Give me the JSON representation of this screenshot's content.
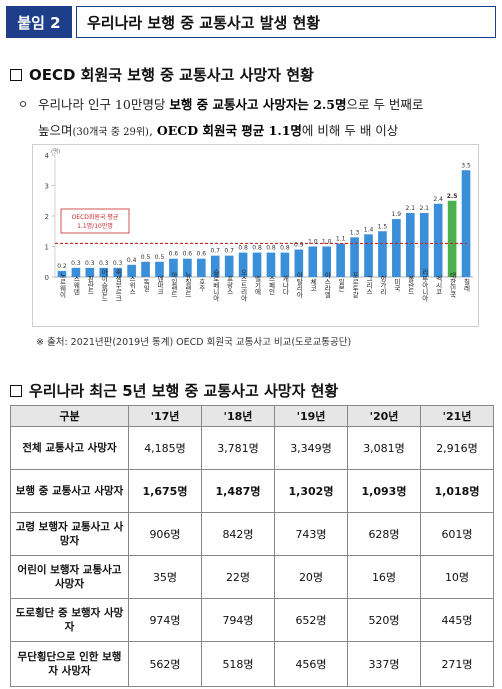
{
  "header": {
    "tag": "붙임 2",
    "title": "우리나라 보행 중 교통사고 발생 현황"
  },
  "section1": {
    "title": "OECD 회원국 보행 중 교통사고 사망자 현황",
    "bullet": "ㅇ",
    "line1_a": "우리나라 인구 10만명당 ",
    "line1_b": "보행 중 교통사고 사망자는 2.5명",
    "line1_c": "으로 두 번째로",
    "line2_a": "높으며",
    "line2_small": "(30개국 중 29위)",
    "line2_b": ", ",
    "line2_c": "OECD 회원국 평균 1.1명",
    "line2_d": "에 비해 두 배 이상"
  },
  "chart_data": {
    "type": "bar",
    "ylabel": "(명)",
    "yticks": [
      0,
      1,
      2,
      3,
      4
    ],
    "ylim": [
      0,
      4
    ],
    "average_label_1": "OECD회원국 평균",
    "average_label_2": "1.1명/10만명",
    "average": 1.1,
    "highlight_index": 28,
    "highlight_color": "#4caf50",
    "bar_color": "#3b8fd8",
    "categories": [
      "노르웨이",
      "스웨덴",
      "핀란드",
      "아이슬란드",
      "룩셈부르크",
      "스위스",
      "독일",
      "덴마크",
      "아일랜드",
      "뉴질랜드",
      "호주",
      "슬로베니아",
      "프랑스",
      "오스트리아",
      "벨기에",
      "스페인",
      "캐나다",
      "이탈리아",
      "체코",
      "이스라엘",
      "일본",
      "포르투갈",
      "그리스",
      "헝가리",
      "미국",
      "폴란드",
      "리투아니아",
      "멕시코",
      "대한민국",
      "칠레"
    ],
    "values": [
      0.2,
      0.3,
      0.3,
      0.3,
      0.3,
      0.4,
      0.5,
      0.5,
      0.6,
      0.6,
      0.6,
      0.7,
      0.7,
      0.8,
      0.8,
      0.8,
      0.8,
      0.9,
      1.0,
      1.0,
      1.1,
      1.3,
      1.4,
      1.5,
      1.9,
      2.1,
      2.1,
      2.4,
      2.5,
      3.5
    ],
    "labels": [
      "0.2",
      "0.3",
      "0.3",
      "0.3",
      "0.3",
      "0.4",
      "0.5",
      "0.5",
      "0.6",
      "0.6",
      "0.6",
      "0.7",
      "0.7",
      "0.8",
      "0.8",
      "0.8",
      "0.8",
      "0.9",
      "1.0",
      "1.0",
      "1.1",
      "1.3",
      "1.4",
      "1.5",
      "1.9",
      "2.1",
      "2.1",
      "2.4",
      "2.5",
      "3.5"
    ]
  },
  "source": "※ 출처: 2021년판(2019년 통계) OECD 회원국 교통사고 비교(도로교통공단)",
  "section2": {
    "title": "우리나라 최근 5년 보행 중 교통사고 사망자 현황",
    "headers": [
      "구분",
      "'17년",
      "'18년",
      "'19년",
      "'20년",
      "'21년"
    ],
    "rows": [
      {
        "label": "전체 교통사고 사망자",
        "values": [
          "4,185명",
          "3,781명",
          "3,349명",
          "3,081명",
          "2,916명"
        ],
        "bold": false
      },
      {
        "label": "보행 중 교통사고 사망자",
        "values": [
          "1,675명",
          "1,487명",
          "1,302명",
          "1,093명",
          "1,018명"
        ],
        "bold": true
      },
      {
        "label": "고령 보행자 교통사고 사망자",
        "values": [
          "906명",
          "842명",
          "743명",
          "628명",
          "601명"
        ],
        "bold": false
      },
      {
        "label": "어린이 보행자 교통사고 사망자",
        "values": [
          "35명",
          "22명",
          "20명",
          "16명",
          "10명"
        ],
        "bold": false
      },
      {
        "label": "도로횡단 중 보행자 사망자",
        "values": [
          "974명",
          "794명",
          "652명",
          "520명",
          "445명"
        ],
        "bold": false
      },
      {
        "label": "무단횡단으로 인한 보행자 사망자",
        "values": [
          "562명",
          "518명",
          "456명",
          "337명",
          "271명"
        ],
        "bold": false
      }
    ]
  }
}
